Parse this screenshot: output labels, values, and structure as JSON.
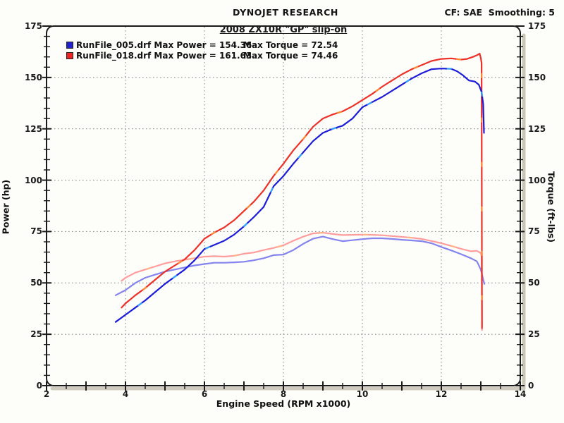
{
  "header": {
    "brand": "DYNOJET RESEARCH",
    "correction": "CF: SAE  Smoothing: 5"
  },
  "chart_data": {
    "type": "line",
    "title": "2008 ZX10R \"GP\" slip-on",
    "xlabel": "Engine Speed (RPM x1000)",
    "ylabel_left": "Power (hp)",
    "ylabel_right": "Torque (ft-lbs)",
    "xlim": [
      2,
      14
    ],
    "ylim": [
      0,
      175
    ],
    "x_major_ticks": [
      2,
      4,
      6,
      8,
      10,
      12,
      14
    ],
    "x_minor_step": 0.5,
    "y_major_ticks": [
      0,
      25,
      50,
      75,
      100,
      125,
      150,
      175
    ],
    "y_minor_step": 5,
    "grid": {
      "h_values": [
        25,
        50,
        75,
        100,
        125,
        150
      ],
      "v_values": [
        4,
        6,
        8,
        10,
        12
      ],
      "style": "dotted",
      "color": "#8f8f8f",
      "legend_position": "top-left"
    },
    "legend": [
      {
        "file": "RunFile_005.drf",
        "max_power": 154.36,
        "max_torque": 72.54,
        "power_label": "RunFile_005.drf Max Power = 154.36",
        "torque_label": "Max Torque = 72.54",
        "color": "#2222cc"
      },
      {
        "file": "RunFile_018.drf",
        "max_power": 161.63,
        "max_torque": 74.46,
        "power_label": "RunFile_018.drf Max Power = 161.63",
        "torque_label": "Max Torque = 74.46",
        "color": "#ee2222"
      }
    ],
    "series": [
      {
        "name": "RunFile_018 Torque",
        "axis": "right",
        "color": "#ff9d9d",
        "accent": "#ffbb80",
        "points": [
          [
            3.9,
            51
          ],
          [
            4,
            52.5
          ],
          [
            4.25,
            55
          ],
          [
            4.5,
            56.5
          ],
          [
            4.75,
            58
          ],
          [
            5,
            59.5
          ],
          [
            5.25,
            60.5
          ],
          [
            5.5,
            61.3
          ],
          [
            5.75,
            62
          ],
          [
            6,
            62.8
          ],
          [
            6.25,
            63
          ],
          [
            6.5,
            62.8
          ],
          [
            6.75,
            63.2
          ],
          [
            7,
            64.2
          ],
          [
            7.25,
            64.8
          ],
          [
            7.5,
            66
          ],
          [
            7.75,
            67
          ],
          [
            8,
            68.3
          ],
          [
            8.25,
            70.5
          ],
          [
            8.5,
            72.5
          ],
          [
            8.75,
            74.1
          ],
          [
            9,
            74.46
          ],
          [
            9.25,
            73.8
          ],
          [
            9.5,
            73.3
          ],
          [
            9.75,
            73.4
          ],
          [
            10,
            73.5
          ],
          [
            10.25,
            73.4
          ],
          [
            10.5,
            73.2
          ],
          [
            10.75,
            72.8
          ],
          [
            11,
            72.4
          ],
          [
            11.25,
            72
          ],
          [
            11.5,
            71.4
          ],
          [
            11.75,
            70.4
          ],
          [
            12,
            69.3
          ],
          [
            12.25,
            68
          ],
          [
            12.5,
            66.6
          ],
          [
            12.75,
            65.4
          ],
          [
            12.9,
            65.6
          ],
          [
            13,
            64.5
          ],
          [
            13.02,
            63
          ],
          [
            13.03,
            27
          ]
        ]
      },
      {
        "name": "RunFile_005 Torque",
        "axis": "right",
        "color": "#8484ee",
        "accent": "#8484ee",
        "points": [
          [
            3.75,
            44
          ],
          [
            4,
            46.5
          ],
          [
            4.25,
            50
          ],
          [
            4.5,
            52.5
          ],
          [
            4.75,
            54
          ],
          [
            5,
            55.5
          ],
          [
            5.25,
            56.5
          ],
          [
            5.5,
            57.5
          ],
          [
            5.75,
            58.5
          ],
          [
            6,
            59.2
          ],
          [
            6.25,
            59.8
          ],
          [
            6.5,
            59.8
          ],
          [
            6.75,
            60
          ],
          [
            7,
            60.3
          ],
          [
            7.25,
            61
          ],
          [
            7.5,
            62
          ],
          [
            7.75,
            63.5
          ],
          [
            8,
            63.8
          ],
          [
            8.25,
            66
          ],
          [
            8.5,
            69
          ],
          [
            8.75,
            71.5
          ],
          [
            9,
            72.54
          ],
          [
            9.25,
            71.3
          ],
          [
            9.5,
            70.3
          ],
          [
            9.75,
            70.8
          ],
          [
            10,
            71.3
          ],
          [
            10.25,
            71.7
          ],
          [
            10.5,
            71.7
          ],
          [
            10.75,
            71.4
          ],
          [
            11,
            71
          ],
          [
            11.25,
            70.7
          ],
          [
            11.5,
            70.3
          ],
          [
            11.75,
            69.3
          ],
          [
            12,
            67.5
          ],
          [
            12.25,
            65.8
          ],
          [
            12.5,
            64
          ],
          [
            12.75,
            62
          ],
          [
            12.9,
            60.5
          ],
          [
            13,
            56.5
          ],
          [
            13.05,
            52.5
          ],
          [
            13.09,
            49.5
          ]
        ]
      },
      {
        "name": "RunFile_018 Power",
        "axis": "left",
        "color": "#ee3128",
        "accent": "#ff9933",
        "points": [
          [
            3.9,
            38
          ],
          [
            4,
            40
          ],
          [
            4.25,
            44
          ],
          [
            4.5,
            47.5
          ],
          [
            4.75,
            51.5
          ],
          [
            5,
            55.5
          ],
          [
            5.25,
            58.5
          ],
          [
            5.5,
            61.5
          ],
          [
            5.75,
            66
          ],
          [
            6,
            71.5
          ],
          [
            6.25,
            74.5
          ],
          [
            6.5,
            77
          ],
          [
            6.75,
            80.5
          ],
          [
            7,
            85
          ],
          [
            7.25,
            89.5
          ],
          [
            7.5,
            95
          ],
          [
            7.75,
            102
          ],
          [
            8,
            108
          ],
          [
            8.25,
            114.5
          ],
          [
            8.5,
            120
          ],
          [
            8.75,
            126
          ],
          [
            9,
            130
          ],
          [
            9.25,
            132
          ],
          [
            9.5,
            133.5
          ],
          [
            9.75,
            136
          ],
          [
            10,
            139
          ],
          [
            10.25,
            142
          ],
          [
            10.5,
            145.5
          ],
          [
            10.75,
            148.5
          ],
          [
            11,
            151.5
          ],
          [
            11.25,
            154
          ],
          [
            11.5,
            156
          ],
          [
            11.75,
            158
          ],
          [
            12,
            159
          ],
          [
            12.25,
            159.3
          ],
          [
            12.5,
            158.7
          ],
          [
            12.65,
            159
          ],
          [
            12.8,
            160
          ],
          [
            12.9,
            160.8
          ],
          [
            12.97,
            161.63
          ],
          [
            13,
            159.5
          ],
          [
            13.02,
            157
          ],
          [
            13.03,
            28
          ]
        ]
      },
      {
        "name": "RunFile_005 Power",
        "axis": "left",
        "color": "#1c1cd8",
        "accent": "#33bbff",
        "points": [
          [
            3.75,
            31
          ],
          [
            4,
            34.5
          ],
          [
            4.25,
            38
          ],
          [
            4.5,
            41.5
          ],
          [
            4.75,
            45.5
          ],
          [
            5,
            49.5
          ],
          [
            5.25,
            53
          ],
          [
            5.5,
            56.5
          ],
          [
            5.75,
            61
          ],
          [
            6,
            66.5
          ],
          [
            6.25,
            68.5
          ],
          [
            6.5,
            70.5
          ],
          [
            6.75,
            73.5
          ],
          [
            7,
            77.5
          ],
          [
            7.25,
            82
          ],
          [
            7.5,
            87
          ],
          [
            7.75,
            97
          ],
          [
            8,
            102
          ],
          [
            8.25,
            108
          ],
          [
            8.5,
            113.5
          ],
          [
            8.75,
            119
          ],
          [
            9,
            123
          ],
          [
            9.25,
            125
          ],
          [
            9.5,
            126.5
          ],
          [
            9.75,
            130
          ],
          [
            10,
            135.5
          ],
          [
            10.25,
            138
          ],
          [
            10.5,
            140.5
          ],
          [
            10.75,
            143.5
          ],
          [
            11,
            146.5
          ],
          [
            11.25,
            149.5
          ],
          [
            11.5,
            152
          ],
          [
            11.75,
            154
          ],
          [
            12,
            154.36
          ],
          [
            12.25,
            154.2
          ],
          [
            12.4,
            153
          ],
          [
            12.55,
            151
          ],
          [
            12.7,
            148.5
          ],
          [
            12.85,
            148
          ],
          [
            12.95,
            146.5
          ],
          [
            13.02,
            143
          ],
          [
            13.06,
            137
          ],
          [
            13.08,
            123
          ]
        ]
      }
    ]
  }
}
